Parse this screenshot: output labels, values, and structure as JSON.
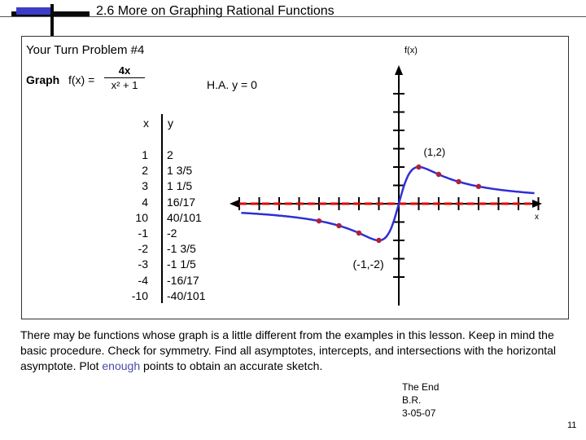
{
  "slide": {
    "title": "2.6  More on Graphing Rational Functions",
    "page_number": "11"
  },
  "problem": {
    "heading": "Your Turn Problem #4",
    "graph_word": "Graph",
    "function_lhs": "f(x) =",
    "numerator": "4x",
    "denominator": "x² + 1",
    "horizontal_asymptote": "H.A.  y = 0"
  },
  "table": {
    "x_header": "x",
    "y_header": "y",
    "x_values": [
      "1",
      "2",
      "3",
      "4",
      "10",
      "-1",
      "-2",
      "-3",
      "-4",
      "-10"
    ],
    "y_values": [
      "2",
      "1 3/5",
      "1 1/5",
      "16/17",
      "40/101",
      "-2",
      "-1 3/5",
      "-1 1/5",
      "-16/17",
      "-40/101"
    ]
  },
  "chart_data": {
    "type": "line",
    "y_axis_label": "f(x)",
    "x_axis_label": "x",
    "x_tick_values": [
      -8,
      -7,
      -6,
      -5,
      -4,
      -3,
      -2,
      -1,
      1,
      2,
      3,
      4,
      5,
      6,
      7
    ],
    "y_tick_values": [
      -4,
      -3,
      -2,
      -1,
      1,
      2,
      3,
      4,
      5,
      6
    ],
    "points": [
      [
        -4,
        -0.941
      ],
      [
        -3,
        -1.2
      ],
      [
        -2,
        -1.6
      ],
      [
        -1,
        -2
      ],
      [
        1,
        2
      ],
      [
        2,
        1.6
      ],
      [
        3,
        1.2
      ],
      [
        4,
        0.941
      ]
    ],
    "annotations": [
      {
        "text": "(1,2)",
        "x": 1,
        "y": 2
      },
      {
        "text": "(-1,-2)",
        "x": -1,
        "y": -2
      }
    ],
    "horizontal_asymptote_y": 0,
    "asymptote_color": "#e60000",
    "curve_color": "#2f2fd6",
    "point_color": "#b0203a"
  },
  "footer": {
    "paragraph_before": "There may be functions whose graph is a little different from the examples in this lesson.  Keep in mind the basic procedure.  Check for symmetry.  Find all asymptotes, intercepts, and intersections with the horizontal asymptote. Plot ",
    "paragraph_highlight": "enough",
    "paragraph_after": " points to obtain an accurate sketch.",
    "end_lines": [
      "The End",
      "B.R.",
      "3-05-07"
    ]
  }
}
